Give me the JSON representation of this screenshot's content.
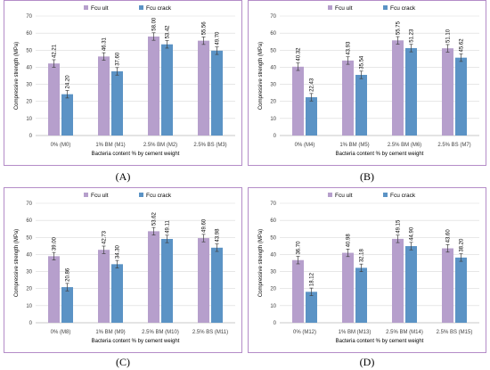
{
  "colors": {
    "ult": "#b69fcc",
    "crack": "#5b93c5",
    "grid": "#d9d9d9",
    "border": "#b48cc8",
    "error": "#404040"
  },
  "chart_data": [
    {
      "type": "bar",
      "panel_label": "(A)",
      "categories": [
        "0% (M0)",
        "1% BM (M1)",
        "2.5% BM (M2)",
        "2.5% BS (M3)"
      ],
      "series": [
        {
          "name": "Fcu ult",
          "values": [
            42.21,
            46.31,
            58.0,
            55.56
          ],
          "labels": [
            "42.21",
            "46.31",
            "58.00",
            "55.56"
          ],
          "color": "#b69fcc"
        },
        {
          "name": "Fcu crack",
          "values": [
            24.2,
            37.6,
            53.42,
            49.7
          ],
          "labels": [
            "24.20",
            "37.60",
            "53.42",
            "49.70"
          ],
          "color": "#5b93c5"
        }
      ],
      "xlabel": "Bacteria content % by cement weight",
      "ylabel": "Compressive strength (MPa)",
      "ylim": [
        0,
        70
      ],
      "yticks": [
        0,
        10,
        20,
        30,
        40,
        50,
        60,
        70
      ],
      "grid": true,
      "legend": "top",
      "error_bars": true
    },
    {
      "type": "bar",
      "panel_label": "(B)",
      "categories": [
        "0% (M4)",
        "1% BM (M5)",
        "2.5% BM (M6)",
        "2.5% BS (M7)"
      ],
      "series": [
        {
          "name": "Fcu ult",
          "values": [
            40.32,
            43.93,
            55.75,
            51.1
          ],
          "labels": [
            "40.32",
            "43.93",
            "55.75",
            "51.10"
          ],
          "color": "#b69fcc"
        },
        {
          "name": "Fcu crack",
          "values": [
            22.43,
            35.54,
            51.23,
            45.62
          ],
          "labels": [
            "22.43",
            "35.54",
            "51.23",
            "45.62"
          ],
          "color": "#5b93c5"
        }
      ],
      "xlabel": "Bacteria content % by cement weight",
      "ylabel": "Compressive strength (MPa)",
      "ylim": [
        0,
        70
      ],
      "yticks": [
        0,
        10,
        20,
        30,
        40,
        50,
        60,
        70
      ],
      "grid": true,
      "legend": "top",
      "error_bars": true
    },
    {
      "type": "bar",
      "panel_label": "(C)",
      "categories": [
        "0% (M8)",
        "1% BM (M9)",
        "2.5% BM (M10)",
        "2.5% BS (M11)"
      ],
      "series": [
        {
          "name": "Fcu ult",
          "values": [
            39.0,
            42.73,
            53.62,
            49.6
          ],
          "labels": [
            "39.00",
            "42.73",
            "53.62",
            "49.60"
          ],
          "color": "#b69fcc"
        },
        {
          "name": "Fcu crack",
          "values": [
            20.86,
            34.3,
            49.11,
            43.98
          ],
          "labels": [
            "20.86",
            "34.30",
            "49.11",
            "43.98"
          ],
          "color": "#5b93c5"
        }
      ],
      "xlabel": "Bacteria content % by cement weight",
      "ylabel": "Compressive strength (MPa)",
      "ylim": [
        0,
        70
      ],
      "yticks": [
        0,
        10,
        20,
        30,
        40,
        50,
        60,
        70
      ],
      "grid": true,
      "legend": "top",
      "error_bars": true
    },
    {
      "type": "bar",
      "panel_label": "(D)",
      "categories": [
        "0% (M12)",
        "1% BM (M13)",
        "2.5% BM (M14)",
        "2.5% BS (M15)"
      ],
      "series": [
        {
          "name": "Fcu ult",
          "values": [
            36.7,
            40.98,
            49.15,
            43.6
          ],
          "labels": [
            "36.70",
            "40.98",
            "49.15",
            "43.60"
          ],
          "color": "#b69fcc"
        },
        {
          "name": "Fcu crack",
          "values": [
            18.12,
            32.18,
            44.9,
            38.2
          ],
          "labels": [
            "18.12",
            "32.18",
            "44.90",
            "38.20"
          ],
          "color": "#5b93c5"
        }
      ],
      "xlabel": "Bacteria content % by cement weight",
      "ylabel": "Compressive strength (MPa)",
      "ylim": [
        0,
        70
      ],
      "yticks": [
        0,
        10,
        20,
        30,
        40,
        50,
        60,
        70
      ],
      "grid": true,
      "legend": "top",
      "error_bars": true
    }
  ]
}
